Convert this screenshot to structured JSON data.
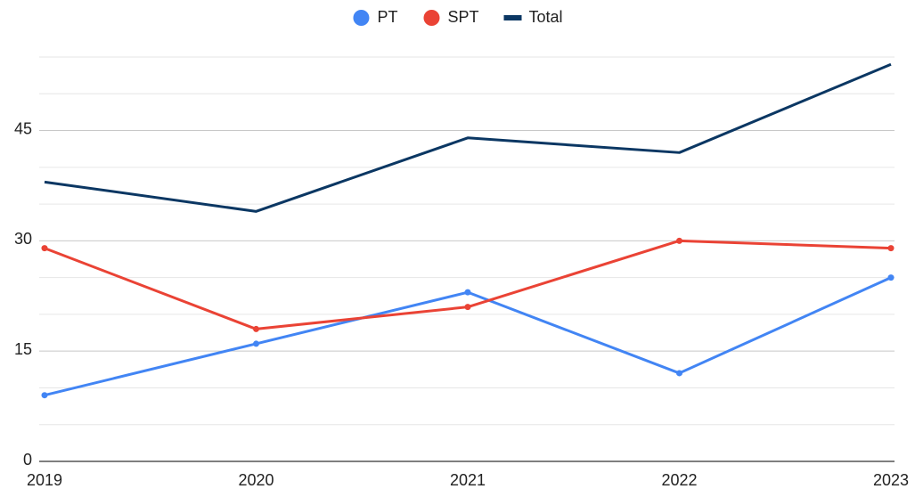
{
  "chart_data": {
    "type": "line",
    "categories": [
      "2019",
      "2020",
      "2021",
      "2022",
      "2023"
    ],
    "series": [
      {
        "name": "PT",
        "color": "#4285f4",
        "point_markers": true,
        "values": [
          9,
          16,
          23,
          12,
          25
        ]
      },
      {
        "name": "SPT",
        "color": "#ea4335",
        "point_markers": true,
        "values": [
          29,
          18,
          21,
          30,
          29
        ]
      },
      {
        "name": "Total",
        "color": "#0b3763",
        "point_markers": false,
        "values": [
          38,
          34,
          44,
          42,
          54
        ]
      }
    ],
    "ylim": [
      0,
      55
    ],
    "yticks": [
      0,
      15,
      30,
      45
    ],
    "minor_yticks": [
      5,
      10,
      20,
      25,
      35,
      40,
      50,
      55
    ],
    "grid": true,
    "legend": "top"
  }
}
